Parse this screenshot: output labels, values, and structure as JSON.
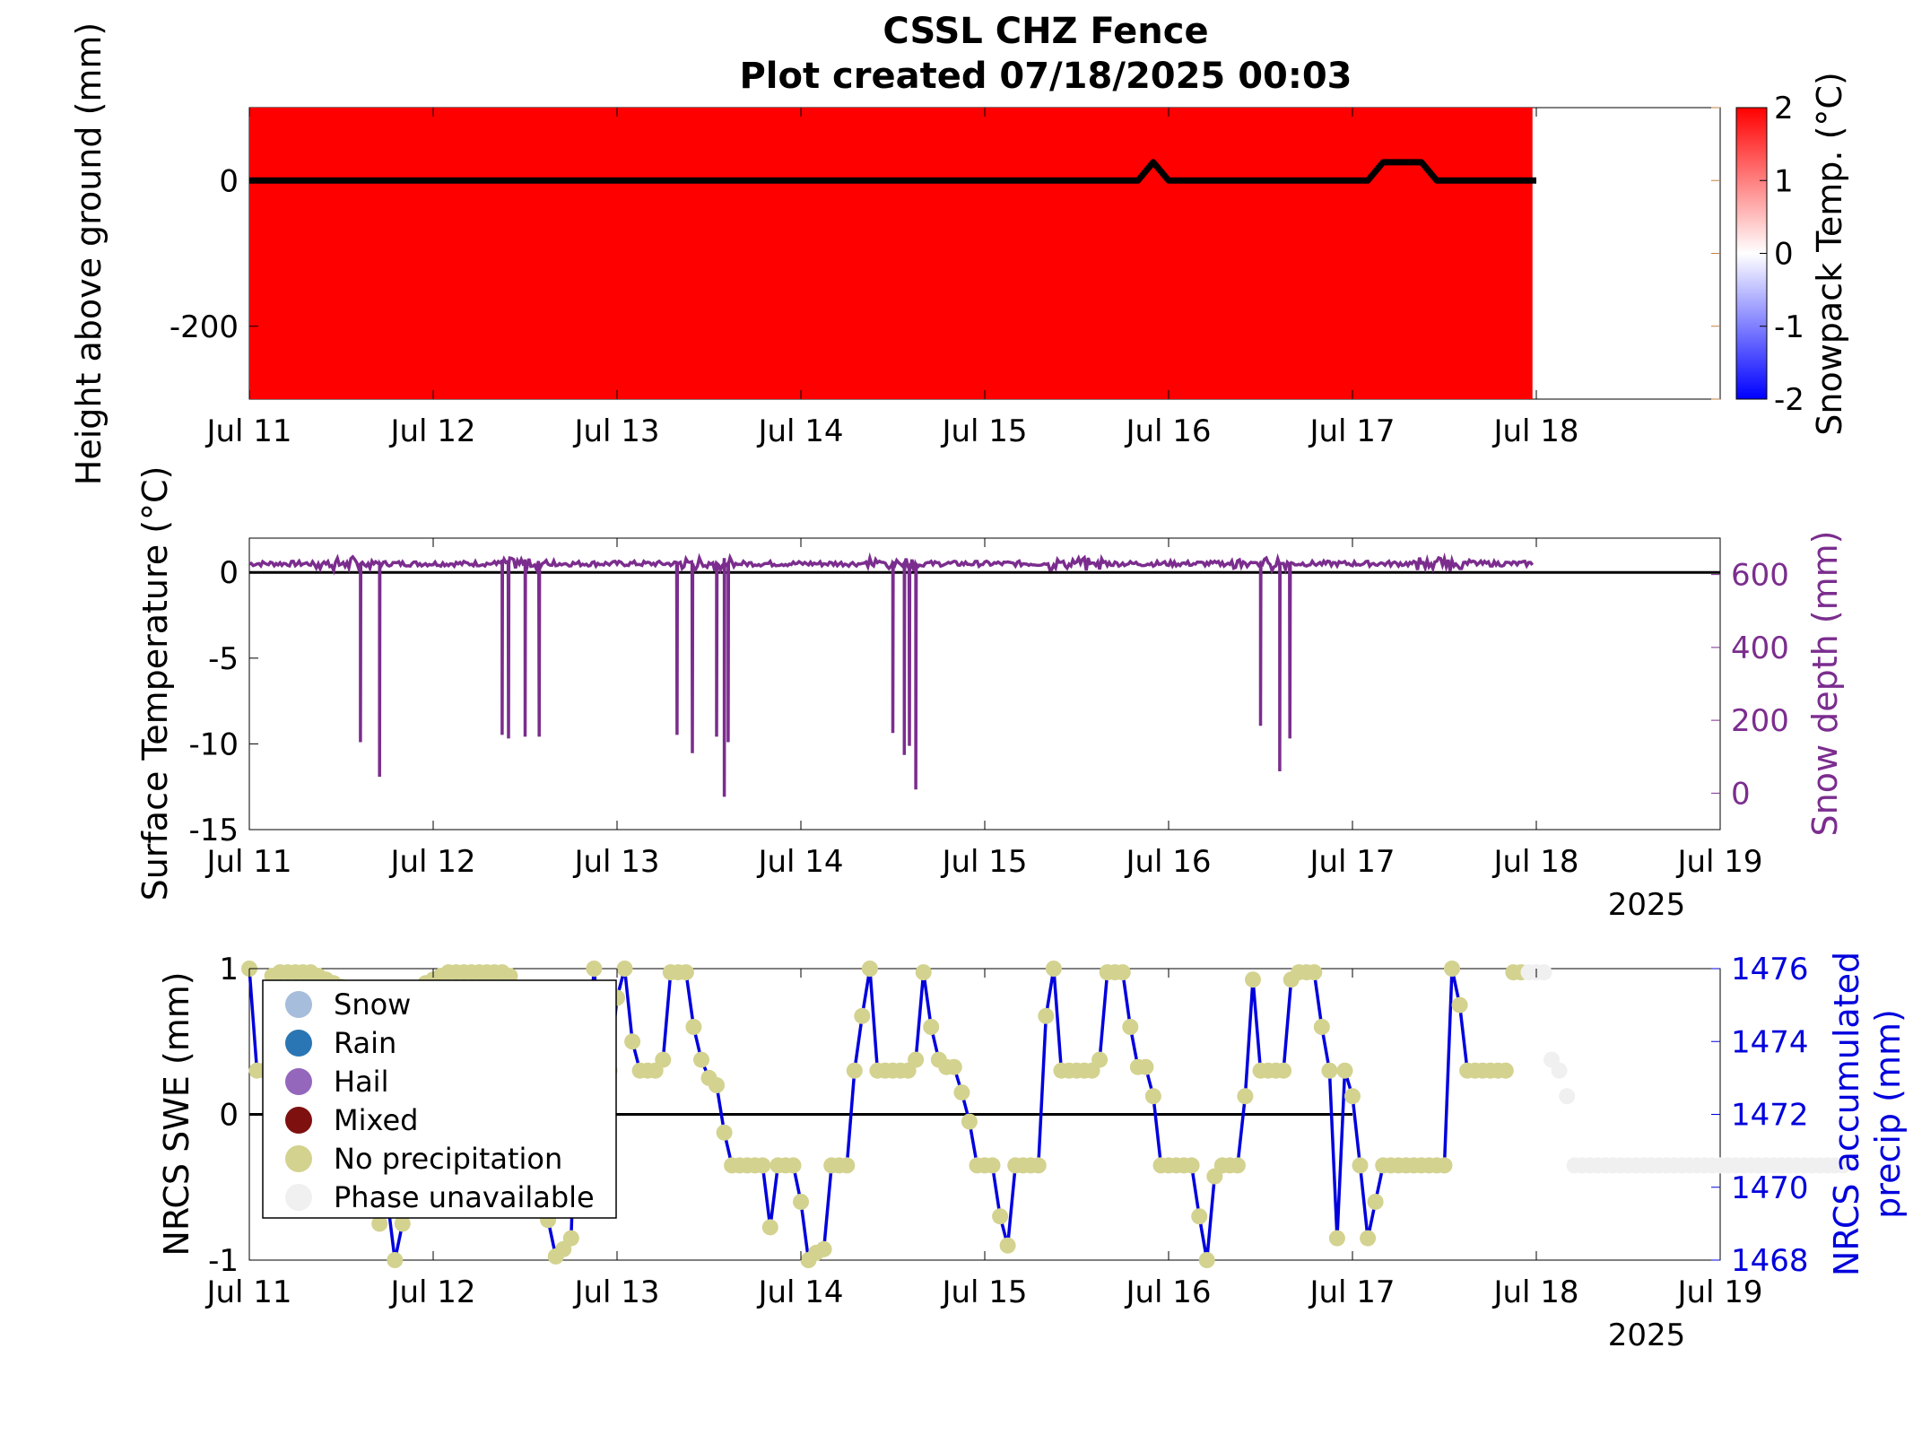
{
  "title": {
    "line1": "CSSL CHZ Fence",
    "line2": "Plot created 07/18/2025 00:03"
  },
  "colors": {
    "snowpack_fill": "#ff0000",
    "depth_line": "#7b2d8e",
    "swe_line": "#0000dd",
    "marker_no_precip": "#d3d28f",
    "marker_unavailable": "#f0f0f0"
  },
  "chart_data": [
    {
      "type": "heatmap",
      "ylabel": "Height above ground (mm)",
      "colorbar_label": "Snowpack Temp. (°C)",
      "colorbar_ticks": [
        "2",
        "1",
        "0",
        "-1",
        "-2"
      ],
      "colorbar_range": [
        -2,
        2
      ],
      "xlim_days": [
        "Jul 11",
        "Jul 19"
      ],
      "x_ticks": [
        "Jul 11",
        "Jul 12",
        "Jul 13",
        "Jul 14",
        "Jul 15",
        "Jul 16",
        "Jul 17",
        "Jul 18"
      ],
      "y_ticks": [
        "0",
        "-200"
      ],
      "ylim": [
        -300,
        100
      ],
      "fill_until": "Jul 17 23:30",
      "fill_value_celsius": 2,
      "snow_surface_series": {
        "x": [
          "Jul 11 00:00",
          "Jul 15 20:00",
          "Jul 15 22:00",
          "Jul 16 00:00",
          "Jul 17 02:00",
          "Jul 17 04:00",
          "Jul 17 09:00",
          "Jul 17 11:00",
          "Jul 18 00:00"
        ],
        "y": [
          0,
          0,
          25,
          0,
          0,
          25,
          25,
          0,
          0
        ]
      }
    },
    {
      "type": "line",
      "ylabel": "Surface Temperature (°C)",
      "ylabel_right": "Snow depth (mm)",
      "x_ticks": [
        "Jul 11",
        "Jul 12",
        "Jul 13",
        "Jul 14",
        "Jul 15",
        "Jul 16",
        "Jul 17",
        "Jul 18",
        "Jul 19"
      ],
      "x_year": "2025",
      "y_ticks": [
        "0",
        "-5",
        "-10",
        "-15"
      ],
      "ylim": [
        -15,
        2
      ],
      "y_right_ticks": [
        "600",
        "400",
        "200",
        "0"
      ],
      "ylim_right": [
        -100,
        700
      ],
      "zero_line": 0,
      "snow_depth_baseline_mm": 630,
      "snow_depth_spikes": [
        {
          "x": "Jul 11 14:30",
          "y": 140
        },
        {
          "x": "Jul 11 17:00",
          "y": 45
        },
        {
          "x": "Jul 12 09:00",
          "y": 160
        },
        {
          "x": "Jul 12 09:50",
          "y": 150
        },
        {
          "x": "Jul 12 12:00",
          "y": 155
        },
        {
          "x": "Jul 12 13:50",
          "y": 155
        },
        {
          "x": "Jul 13 07:50",
          "y": 160
        },
        {
          "x": "Jul 13 09:50",
          "y": 110
        },
        {
          "x": "Jul 13 13:00",
          "y": 155
        },
        {
          "x": "Jul 13 14:00",
          "y": -10
        },
        {
          "x": "Jul 13 14:30",
          "y": 140
        },
        {
          "x": "Jul 14 12:00",
          "y": 165
        },
        {
          "x": "Jul 14 13:30",
          "y": 105
        },
        {
          "x": "Jul 14 14:10",
          "y": 130
        },
        {
          "x": "Jul 14 15:00",
          "y": 10
        },
        {
          "x": "Jul 16 12:00",
          "y": 185
        },
        {
          "x": "Jul 16 14:30",
          "y": 60
        },
        {
          "x": "Jul 16 15:50",
          "y": 150
        }
      ],
      "snow_depth_end": "Jul 17 23:30"
    },
    {
      "type": "scatter",
      "ylabel": "NRCS SWE (mm)",
      "ylabel_right_line1": "NRCS accumulated",
      "ylabel_right_line2": "precip (mm)",
      "x_ticks": [
        "Jul 11",
        "Jul 12",
        "Jul 13",
        "Jul 14",
        "Jul 15",
        "Jul 16",
        "Jul 17",
        "Jul 18",
        "Jul 19"
      ],
      "x_year": "2025",
      "y_ticks": [
        "1",
        "0",
        "-1"
      ],
      "ylim": [
        -1,
        1
      ],
      "y_right_ticks": [
        "1476",
        "1474",
        "1472",
        "1470",
        "1468"
      ],
      "ylim_right": [
        1468,
        1476
      ],
      "zero_line_until": "Jul 17 00:00",
      "legend": {
        "placement": "top-left",
        "entries": [
          {
            "label": "Snow",
            "color": "#a6bddb"
          },
          {
            "label": "Rain",
            "color": "#2a76b4"
          },
          {
            "label": "Hail",
            "color": "#9467bd"
          },
          {
            "label": "Mixed",
            "color": "#7f1010"
          },
          {
            "label": "No precipitation",
            "color": "#d3d28f"
          },
          {
            "label": "Phase unavailable",
            "color": "#f0f0f0"
          }
        ]
      },
      "accumulated_precip_series": {
        "x_hours_from_jul11": [
          0,
          1,
          2,
          3,
          4,
          5,
          6,
          7,
          8,
          9,
          10,
          11,
          12,
          13,
          14,
          15,
          16,
          17,
          18,
          19,
          20,
          21,
          22,
          23,
          24,
          25,
          26,
          27,
          28,
          29,
          30,
          31,
          32,
          33,
          34,
          35,
          36,
          37,
          38,
          39,
          40,
          41,
          42,
          43,
          44,
          45,
          46,
          47,
          48,
          49,
          50,
          51,
          52,
          53,
          54,
          55,
          56,
          57,
          58,
          59,
          60,
          61,
          62,
          63,
          64,
          65,
          66,
          67,
          68,
          69,
          70,
          71,
          72,
          73,
          74,
          75,
          76,
          77,
          78,
          79,
          80,
          81,
          82,
          83,
          84,
          85,
          86,
          87,
          88,
          89,
          90,
          91,
          92,
          93,
          94,
          95,
          96,
          97,
          98,
          99,
          100,
          101,
          102,
          103,
          104,
          105,
          106,
          107,
          108,
          109,
          110,
          111,
          112,
          113,
          114,
          115,
          116,
          117,
          118,
          119,
          120,
          121,
          122,
          123,
          124,
          125,
          126,
          127,
          128,
          129,
          130,
          131,
          132,
          133,
          134,
          135,
          136,
          137,
          138,
          139,
          140,
          141,
          142,
          143,
          144,
          145,
          146,
          147,
          148,
          149,
          150,
          151,
          152,
          153,
          154,
          155,
          156,
          157,
          158,
          159,
          160,
          161,
          162,
          163,
          164,
          165,
          166,
          167,
          168,
          169,
          170,
          171,
          172,
          173,
          174,
          175,
          176,
          177,
          178,
          179,
          180,
          181,
          182,
          183,
          184,
          185,
          186,
          187,
          188,
          189,
          190,
          191,
          192,
          193,
          194,
          195,
          196,
          197,
          198,
          199,
          200,
          201,
          202,
          203,
          204,
          205,
          206,
          207,
          208
        ],
        "y_mm": [
          1476,
          1473.2,
          1473.2,
          1475.8,
          1475.9,
          1475.9,
          1475.9,
          1475.9,
          1475.9,
          1475.8,
          1475.7,
          1475.6,
          1475.5,
          1475.4,
          1475.1,
          1474.7,
          1472.2,
          1469.0,
          1469.7,
          1468.0,
          1469.0,
          1471.0,
          1473.5,
          1475.6,
          1475.7,
          1475.8,
          1475.9,
          1475.9,
          1475.9,
          1475.9,
          1475.9,
          1475.9,
          1475.9,
          1475.9,
          1475.8,
          1475.4,
          1475.1,
          1474.6,
          1474.0,
          1469.1,
          1468.1,
          1468.3,
          1468.6,
          1475.0,
          1473.3,
          1476.0,
          1473.5,
          1473.2,
          1475.2,
          1476,
          1474,
          1473.2,
          1473.2,
          1473.2,
          1473.5,
          1475.9,
          1475.9,
          1475.9,
          1474.4,
          1473.5,
          1473.0,
          1472.8,
          1471.5,
          1470.6,
          1470.6,
          1470.6,
          1470.6,
          1470.6,
          1468.9,
          1470.6,
          1470.6,
          1470.6,
          1469.6,
          1468.0,
          1468.2,
          1468.3,
          1470.6,
          1470.6,
          1470.6,
          1473.2,
          1474.7,
          1476,
          1473.2,
          1473.2,
          1473.2,
          1473.2,
          1473.2,
          1473.5,
          1475.9,
          1474.4,
          1473.5,
          1473.3,
          1473.3,
          1472.6,
          1471.8,
          1470.6,
          1470.6,
          1470.6,
          1469.2,
          1468.4,
          1470.6,
          1470.6,
          1470.6,
          1470.6,
          1474.7,
          1476,
          1473.2,
          1473.2,
          1473.2,
          1473.2,
          1473.2,
          1473.5,
          1475.9,
          1475.9,
          1475.9,
          1474.4,
          1473.3,
          1473.3,
          1472.5,
          1470.6,
          1470.6,
          1470.6,
          1470.6,
          1470.6,
          1469.2,
          1468.0,
          1470.3,
          1470.6,
          1470.6,
          1470.6,
          1472.5,
          1475.7,
          1473.2,
          1473.2,
          1473.2,
          1473.2,
          1475.7,
          1475.9,
          1475.9,
          1475.9,
          1474.4,
          1473.2,
          1468.6,
          1473.2,
          1472.5,
          1470.6,
          1468.6,
          1469.6,
          1470.6,
          1470.6,
          1470.6,
          1470.6,
          1470.6,
          1470.6,
          1470.6,
          1470.6,
          1470.6,
          1476,
          1475,
          1473.2,
          1473.2,
          1473.2,
          1473.2,
          1473.2,
          1473.2,
          1475.9,
          1475.9,
          1475.9,
          1475.9,
          1475.9,
          1473.5,
          1473.2,
          1472.5,
          1470.6,
          1470.6,
          1470.6,
          1470.6,
          1470.6,
          1470.6,
          1470.6,
          1470.6,
          1470.6,
          1470.6,
          1470.6,
          1470.6,
          1470.6,
          1470.6,
          1470.6,
          1470.6,
          1470.6,
          1470.6,
          1470.6,
          1470.6,
          1470.6,
          1470.6,
          1470.6,
          1470.6,
          1470.6,
          1470.6,
          1470.6,
          1470.6,
          1470.6,
          1470.6,
          1470.6,
          1470.6,
          1470.6,
          1470.6,
          1470.6,
          1470.6,
          1470.6,
          1470.6,
          1470.6,
          1470.6,
          1470.6
        ],
        "unavailable_after_hour": 166,
        "line_end_hour": 162
      }
    }
  ]
}
